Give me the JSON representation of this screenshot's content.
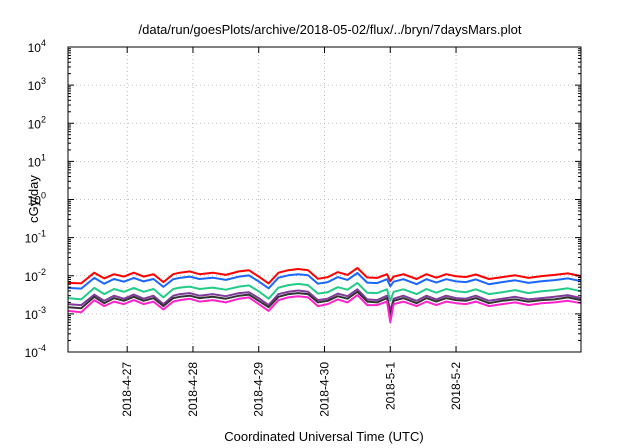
{
  "chart_data": {
    "type": "line",
    "title": "/data/run/goesPlots/archive/2018-05-02/flux/../bryn/7daysMars.plot",
    "xlabel": "Coordinated Universal Time (UTC)",
    "ylabel": "cGy/day",
    "yscale": "log",
    "ylim": [
      0.0001,
      10000
    ],
    "xlim": [
      -0.9,
      6.9
    ],
    "grid": true,
    "legend": "none",
    "x_ticks": [
      {
        "pos": 0,
        "label": "2018-4-27"
      },
      {
        "pos": 1,
        "label": "2018-4-28"
      },
      {
        "pos": 2,
        "label": "2018-4-29"
      },
      {
        "pos": 3,
        "label": "2018-4-30"
      },
      {
        "pos": 4,
        "label": "2018-5-1"
      },
      {
        "pos": 5,
        "label": "2018-5-2"
      }
    ],
    "y_ticks": [
      {
        "value": 0.0001,
        "base": "10",
        "exp": "-4"
      },
      {
        "value": 0.001,
        "base": "10",
        "exp": "-3"
      },
      {
        "value": 0.01,
        "base": "10",
        "exp": "-2"
      },
      {
        "value": 0.1,
        "base": "10",
        "exp": "-1"
      },
      {
        "value": 1,
        "base": "10",
        "exp": "0"
      },
      {
        "value": 10,
        "base": "10",
        "exp": "1"
      },
      {
        "value": 100,
        "base": "10",
        "exp": "2"
      },
      {
        "value": 1000,
        "base": "10",
        "exp": "3"
      },
      {
        "value": 10000,
        "base": "10",
        "exp": "4"
      }
    ],
    "x": [
      -0.9,
      -0.7,
      -0.5,
      -0.35,
      -0.2,
      -0.05,
      0.1,
      0.25,
      0.4,
      0.55,
      0.7,
      0.8,
      0.95,
      1.1,
      1.3,
      1.5,
      1.7,
      1.85,
      2.0,
      2.15,
      2.3,
      2.45,
      2.6,
      2.75,
      2.9,
      3.05,
      3.2,
      3.35,
      3.5,
      3.65,
      3.8,
      3.95,
      4.0,
      4.05,
      4.2,
      4.4,
      4.55,
      4.7,
      4.85,
      5.0,
      5.15,
      5.3,
      5.5,
      5.7,
      5.9,
      6.1,
      6.3,
      6.5,
      6.7,
      6.9
    ],
    "series": [
      {
        "color": "#ff0000",
        "values": [
          0.0065,
          0.0063,
          0.012,
          0.0085,
          0.011,
          0.0095,
          0.012,
          0.0095,
          0.011,
          0.0068,
          0.011,
          0.012,
          0.013,
          0.011,
          0.012,
          0.0105,
          0.013,
          0.014,
          0.0095,
          0.0063,
          0.012,
          0.014,
          0.015,
          0.014,
          0.0083,
          0.0092,
          0.0125,
          0.0105,
          0.016,
          0.009,
          0.0088,
          0.011,
          0.0072,
          0.0095,
          0.011,
          0.0082,
          0.011,
          0.0089,
          0.011,
          0.0097,
          0.0093,
          0.0108,
          0.0082,
          0.0092,
          0.0103,
          0.0088,
          0.0098,
          0.0105,
          0.0115,
          0.0098
        ]
      },
      {
        "color": "#1a66ff",
        "values": [
          0.0048,
          0.0046,
          0.0088,
          0.0062,
          0.0082,
          0.007,
          0.0088,
          0.0071,
          0.0082,
          0.0051,
          0.0081,
          0.0088,
          0.0095,
          0.0082,
          0.0089,
          0.0078,
          0.0095,
          0.0102,
          0.0071,
          0.0047,
          0.0089,
          0.0103,
          0.011,
          0.0103,
          0.0062,
          0.0068,
          0.0092,
          0.0078,
          0.0118,
          0.0066,
          0.0064,
          0.0081,
          0.0053,
          0.007,
          0.0081,
          0.006,
          0.0081,
          0.0066,
          0.0081,
          0.0071,
          0.0068,
          0.008,
          0.006,
          0.0068,
          0.0076,
          0.0065,
          0.0072,
          0.0077,
          0.0085,
          0.0072
        ]
      },
      {
        "color": "#22cc88",
        "values": [
          0.0026,
          0.0024,
          0.0048,
          0.0033,
          0.0045,
          0.0038,
          0.0048,
          0.0038,
          0.0045,
          0.0027,
          0.0045,
          0.0049,
          0.0052,
          0.0045,
          0.0049,
          0.0043,
          0.0052,
          0.0056,
          0.0039,
          0.0025,
          0.0049,
          0.0057,
          0.0061,
          0.0057,
          0.0034,
          0.0037,
          0.005,
          0.0043,
          0.0065,
          0.0036,
          0.0035,
          0.0044,
          0.0022,
          0.0038,
          0.0044,
          0.0033,
          0.0045,
          0.0036,
          0.0045,
          0.0039,
          0.0037,
          0.0044,
          0.0033,
          0.0037,
          0.0042,
          0.0035,
          0.0039,
          0.0042,
          0.0047,
          0.0039
        ]
      },
      {
        "color": "#7f3a9a",
        "values": [
          0.0018,
          0.0017,
          0.0032,
          0.0022,
          0.003,
          0.0025,
          0.0032,
          0.0025,
          0.003,
          0.0018,
          0.003,
          0.0033,
          0.0035,
          0.003,
          0.0033,
          0.0029,
          0.0035,
          0.0037,
          0.0026,
          0.0017,
          0.0033,
          0.0038,
          0.0041,
          0.0038,
          0.0023,
          0.0025,
          0.0034,
          0.0029,
          0.0044,
          0.0024,
          0.0023,
          0.003,
          0.0012,
          0.0025,
          0.003,
          0.0022,
          0.003,
          0.0024,
          0.003,
          0.0026,
          0.0025,
          0.003,
          0.0022,
          0.0025,
          0.0028,
          0.0024,
          0.0026,
          0.0028,
          0.0031,
          0.0026
        ]
      },
      {
        "color": "#333333",
        "values": [
          0.0015,
          0.0014,
          0.0028,
          0.0019,
          0.0026,
          0.0022,
          0.0028,
          0.0022,
          0.0026,
          0.0016,
          0.0026,
          0.0028,
          0.003,
          0.0026,
          0.0028,
          0.0025,
          0.003,
          0.0032,
          0.0022,
          0.0015,
          0.0028,
          0.0033,
          0.0035,
          0.0033,
          0.002,
          0.0022,
          0.0029,
          0.0025,
          0.0038,
          0.0021,
          0.002,
          0.0026,
          0.0009,
          0.0022,
          0.0026,
          0.0019,
          0.0026,
          0.0021,
          0.0026,
          0.0023,
          0.0022,
          0.0026,
          0.0019,
          0.0022,
          0.0024,
          0.0021,
          0.0023,
          0.0024,
          0.0027,
          0.0023
        ]
      },
      {
        "color": "#ff22cc",
        "values": [
          0.0012,
          0.0011,
          0.0023,
          0.0016,
          0.0021,
          0.0018,
          0.0023,
          0.0018,
          0.0021,
          0.0013,
          0.0021,
          0.0023,
          0.0025,
          0.0021,
          0.0023,
          0.002,
          0.0025,
          0.0027,
          0.0018,
          0.0012,
          0.0023,
          0.0027,
          0.0029,
          0.0027,
          0.0016,
          0.0018,
          0.0024,
          0.002,
          0.0031,
          0.0017,
          0.0017,
          0.0021,
          0.0006,
          0.0018,
          0.0021,
          0.0016,
          0.0021,
          0.0017,
          0.0021,
          0.0019,
          0.0018,
          0.0021,
          0.0016,
          0.0018,
          0.002,
          0.0017,
          0.0019,
          0.002,
          0.0022,
          0.0019
        ]
      }
    ]
  }
}
